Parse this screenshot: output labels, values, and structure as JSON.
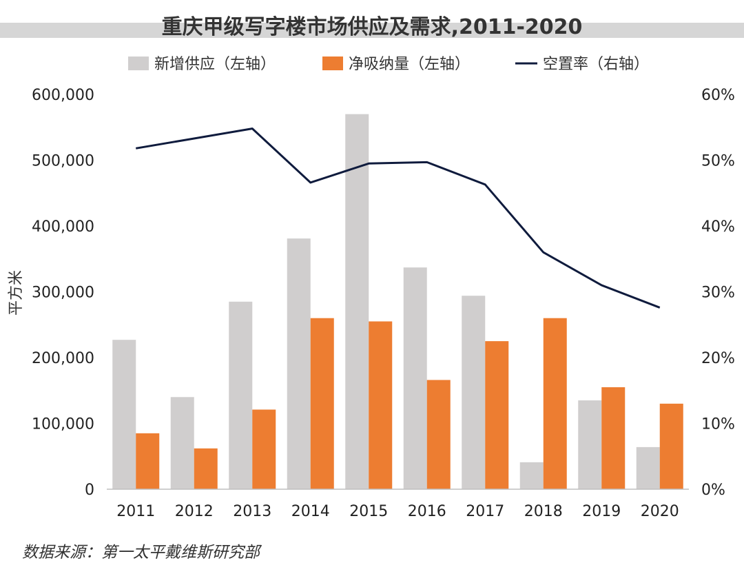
{
  "chart_data": {
    "type": "bar",
    "title": "重庆甲级写字楼市场供应及需求,2011-2020",
    "ylabel": "平方米",
    "categories": [
      "2011",
      "2012",
      "2013",
      "2014",
      "2015",
      "2016",
      "2017",
      "2018",
      "2019",
      "2020"
    ],
    "ylim": [
      0,
      600000
    ],
    "y2lim": [
      0,
      60
    ],
    "y_ticks": [
      "0",
      "100,000",
      "200,000",
      "300,000",
      "400,000",
      "500,000",
      "600,000"
    ],
    "y2_ticks": [
      "0%",
      "10%",
      "20%",
      "30%",
      "40%",
      "50%",
      "60%"
    ],
    "series": [
      {
        "name": "新增供应（左轴）",
        "type": "bar",
        "axis": "left",
        "color": "#d0cece",
        "values": [
          227000,
          140000,
          285000,
          381000,
          570000,
          337000,
          294000,
          41000,
          135000,
          64000
        ]
      },
      {
        "name": "净吸纳量（左轴）",
        "type": "bar",
        "axis": "left",
        "color": "#ed7d31",
        "values": [
          85000,
          62000,
          121000,
          260000,
          255000,
          166000,
          225000,
          260000,
          155000,
          130000
        ]
      },
      {
        "name": "空置率（右轴）",
        "type": "line",
        "axis": "right",
        "color": "#0f1b3d",
        "values": [
          51.8,
          53.3,
          54.8,
          46.6,
          49.5,
          49.7,
          46.3,
          36.0,
          31.0,
          27.6
        ]
      }
    ]
  },
  "source_text": "数据来源：第一太平戴维斯研究部"
}
